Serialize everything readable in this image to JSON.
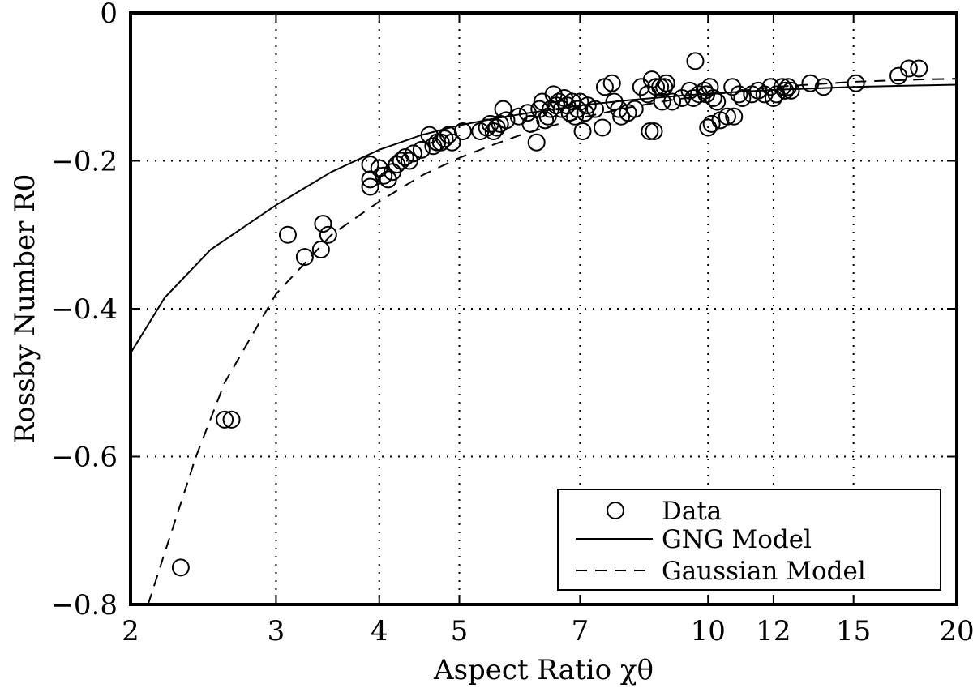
{
  "chart_data": {
    "type": "scatter",
    "xlabel": "Aspect Ratio χθ",
    "ylabel": "Rossby Number R0",
    "x_scale": "log",
    "xlim": [
      2,
      20
    ],
    "ylim": [
      -0.8,
      0
    ],
    "x_ticks": [
      2,
      3,
      4,
      5,
      7,
      10,
      12,
      15,
      20
    ],
    "x_tick_labels": [
      "2",
      "3",
      "4",
      "5",
      "7",
      "10",
      "12",
      "15",
      "20"
    ],
    "y_ticks": [
      -0.8,
      -0.6,
      -0.4,
      -0.2,
      0
    ],
    "y_tick_labels": [
      "−0.8",
      "−0.6",
      "−0.4",
      "−0.2",
      "0"
    ],
    "grid": true,
    "legend_position": "bottom-right",
    "series": [
      {
        "name": "Data",
        "style": "open-circle",
        "color": "#000000",
        "points": [
          [
            2.3,
            -0.75
          ],
          [
            2.6,
            -0.55
          ],
          [
            2.65,
            -0.55
          ],
          [
            3.1,
            -0.3
          ],
          [
            3.25,
            -0.33
          ],
          [
            3.4,
            -0.32
          ],
          [
            3.42,
            -0.285
          ],
          [
            3.47,
            -0.3
          ],
          [
            3.9,
            -0.235
          ],
          [
            3.9,
            -0.225
          ],
          [
            3.9,
            -0.205
          ],
          [
            4.0,
            -0.21
          ],
          [
            4.05,
            -0.22
          ],
          [
            4.1,
            -0.225
          ],
          [
            4.15,
            -0.215
          ],
          [
            4.2,
            -0.205
          ],
          [
            4.25,
            -0.2
          ],
          [
            4.3,
            -0.195
          ],
          [
            4.35,
            -0.2
          ],
          [
            4.4,
            -0.19
          ],
          [
            4.5,
            -0.185
          ],
          [
            4.6,
            -0.165
          ],
          [
            4.65,
            -0.18
          ],
          [
            4.7,
            -0.175
          ],
          [
            4.75,
            -0.175
          ],
          [
            4.8,
            -0.17
          ],
          [
            4.85,
            -0.165
          ],
          [
            4.9,
            -0.175
          ],
          [
            5.05,
            -0.16
          ],
          [
            5.3,
            -0.16
          ],
          [
            5.4,
            -0.155
          ],
          [
            5.45,
            -0.15
          ],
          [
            5.5,
            -0.16
          ],
          [
            5.55,
            -0.155
          ],
          [
            5.6,
            -0.15
          ],
          [
            5.65,
            -0.13
          ],
          [
            5.7,
            -0.145
          ],
          [
            5.9,
            -0.14
          ],
          [
            6.05,
            -0.135
          ],
          [
            6.1,
            -0.15
          ],
          [
            6.2,
            -0.175
          ],
          [
            6.25,
            -0.13
          ],
          [
            6.3,
            -0.12
          ],
          [
            6.35,
            -0.145
          ],
          [
            6.4,
            -0.14
          ],
          [
            6.45,
            -0.13
          ],
          [
            6.5,
            -0.11
          ],
          [
            6.55,
            -0.125
          ],
          [
            6.6,
            -0.12
          ],
          [
            6.65,
            -0.13
          ],
          [
            6.7,
            -0.115
          ],
          [
            6.75,
            -0.125
          ],
          [
            6.8,
            -0.135
          ],
          [
            6.85,
            -0.12
          ],
          [
            6.9,
            -0.14
          ],
          [
            6.95,
            -0.13
          ],
          [
            7.0,
            -0.12
          ],
          [
            7.05,
            -0.16
          ],
          [
            7.1,
            -0.135
          ],
          [
            7.15,
            -0.125
          ],
          [
            7.3,
            -0.13
          ],
          [
            7.45,
            -0.155
          ],
          [
            7.5,
            -0.1
          ],
          [
            7.65,
            -0.095
          ],
          [
            7.7,
            -0.12
          ],
          [
            7.8,
            -0.13
          ],
          [
            7.85,
            -0.14
          ],
          [
            8.0,
            -0.135
          ],
          [
            8.15,
            -0.13
          ],
          [
            8.3,
            -0.1
          ],
          [
            8.45,
            -0.11
          ],
          [
            8.5,
            -0.16
          ],
          [
            8.55,
            -0.09
          ],
          [
            8.6,
            -0.16
          ],
          [
            8.65,
            -0.1
          ],
          [
            8.75,
            -0.1
          ],
          [
            8.8,
            -0.12
          ],
          [
            8.85,
            -0.1
          ],
          [
            8.9,
            -0.095
          ],
          [
            9.05,
            -0.12
          ],
          [
            9.3,
            -0.115
          ],
          [
            9.5,
            -0.105
          ],
          [
            9.6,
            -0.115
          ],
          [
            9.65,
            -0.065
          ],
          [
            9.75,
            -0.11
          ],
          [
            9.9,
            -0.105
          ],
          [
            9.95,
            -0.11
          ],
          [
            10.0,
            -0.155
          ],
          [
            10.05,
            -0.1
          ],
          [
            10.1,
            -0.15
          ],
          [
            10.15,
            -0.115
          ],
          [
            10.25,
            -0.12
          ],
          [
            10.35,
            -0.145
          ],
          [
            10.55,
            -0.14
          ],
          [
            10.7,
            -0.1
          ],
          [
            10.75,
            -0.14
          ],
          [
            10.9,
            -0.11
          ],
          [
            11.0,
            -0.115
          ],
          [
            11.3,
            -0.11
          ],
          [
            11.5,
            -0.105
          ],
          [
            11.7,
            -0.11
          ],
          [
            11.9,
            -0.1
          ],
          [
            12.0,
            -0.115
          ],
          [
            12.1,
            -0.11
          ],
          [
            12.3,
            -0.1
          ],
          [
            12.4,
            -0.105
          ],
          [
            12.5,
            -0.1
          ],
          [
            12.6,
            -0.105
          ],
          [
            13.3,
            -0.095
          ],
          [
            13.8,
            -0.1
          ],
          [
            15.1,
            -0.095
          ],
          [
            17.0,
            -0.085
          ],
          [
            17.5,
            -0.075
          ],
          [
            18.0,
            -0.075
          ]
        ]
      },
      {
        "name": "GNG Model",
        "style": "solid-line",
        "color": "#000000",
        "points": [
          [
            2.0,
            -0.46
          ],
          [
            2.2,
            -0.385
          ],
          [
            2.5,
            -0.32
          ],
          [
            3.0,
            -0.26
          ],
          [
            3.5,
            -0.215
          ],
          [
            4.0,
            -0.185
          ],
          [
            4.5,
            -0.165
          ],
          [
            5.0,
            -0.152
          ],
          [
            5.5,
            -0.143
          ],
          [
            6.0,
            -0.136
          ],
          [
            7.0,
            -0.125
          ],
          [
            8.0,
            -0.118
          ],
          [
            9.0,
            -0.113
          ],
          [
            10.0,
            -0.109
          ],
          [
            12.0,
            -0.104
          ],
          [
            15.0,
            -0.1
          ],
          [
            18.0,
            -0.098
          ],
          [
            20.0,
            -0.097
          ]
        ]
      },
      {
        "name": "Gaussian Model",
        "style": "dashed-line",
        "color": "#000000",
        "points": [
          [
            2.1,
            -0.8
          ],
          [
            2.2,
            -0.73
          ],
          [
            2.4,
            -0.6
          ],
          [
            2.6,
            -0.5
          ],
          [
            3.0,
            -0.38
          ],
          [
            3.5,
            -0.3
          ],
          [
            4.0,
            -0.255
          ],
          [
            4.5,
            -0.22
          ],
          [
            5.0,
            -0.196
          ],
          [
            5.5,
            -0.178
          ],
          [
            6.0,
            -0.163
          ],
          [
            7.0,
            -0.142
          ],
          [
            8.0,
            -0.128
          ],
          [
            9.0,
            -0.118
          ],
          [
            10.0,
            -0.111
          ],
          [
            12.0,
            -0.1
          ],
          [
            15.0,
            -0.093
          ],
          [
            18.0,
            -0.09
          ],
          [
            20.0,
            -0.089
          ]
        ]
      }
    ]
  }
}
